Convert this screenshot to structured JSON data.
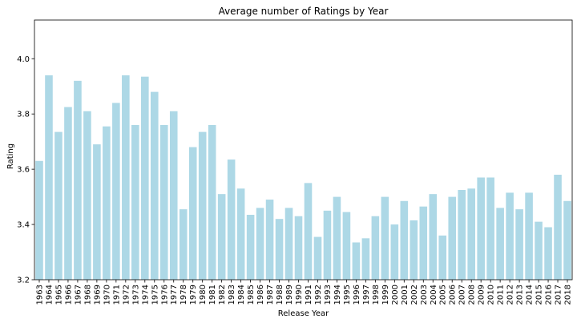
{
  "chart_data": {
    "type": "bar",
    "title": "Average number of Ratings by Year",
    "xlabel": "Release Year",
    "ylabel": "Rating",
    "ylim": [
      3.2,
      4.14
    ],
    "yticks": [
      "3.2",
      "3.4",
      "3.6",
      "3.8",
      "4.0"
    ],
    "grid": false,
    "bar_color": "#add8e6",
    "categories": [
      "1963",
      "1964",
      "1965",
      "1966",
      "1967",
      "1968",
      "1969",
      "1970",
      "1971",
      "1972",
      "1973",
      "1974",
      "1975",
      "1976",
      "1977",
      "1978",
      "1979",
      "1980",
      "1981",
      "1982",
      "1983",
      "1984",
      "1985",
      "1986",
      "1987",
      "1988",
      "1989",
      "1990",
      "1991",
      "1992",
      "1993",
      "1994",
      "1995",
      "1996",
      "1997",
      "1998",
      "1999",
      "2000",
      "2001",
      "2002",
      "2003",
      "2004",
      "2005",
      "2006",
      "2007",
      "2008",
      "2009",
      "2010",
      "2011",
      "2012",
      "2013",
      "2014",
      "2015",
      "2016",
      "2017",
      "2018"
    ],
    "values": [
      3.63,
      3.94,
      3.735,
      3.825,
      3.92,
      3.81,
      3.69,
      3.755,
      3.84,
      3.94,
      3.76,
      3.935,
      3.88,
      3.76,
      3.81,
      3.455,
      3.68,
      3.735,
      3.76,
      3.51,
      3.635,
      3.53,
      3.435,
      3.46,
      3.49,
      3.42,
      3.46,
      3.43,
      3.55,
      3.355,
      3.45,
      3.5,
      3.445,
      3.335,
      3.35,
      3.43,
      3.5,
      3.4,
      3.485,
      3.415,
      3.465,
      3.51,
      3.36,
      3.5,
      3.525,
      3.53,
      3.57,
      3.57,
      3.46,
      3.515,
      3.455,
      3.515,
      3.41,
      3.39,
      3.58,
      3.485
    ]
  }
}
